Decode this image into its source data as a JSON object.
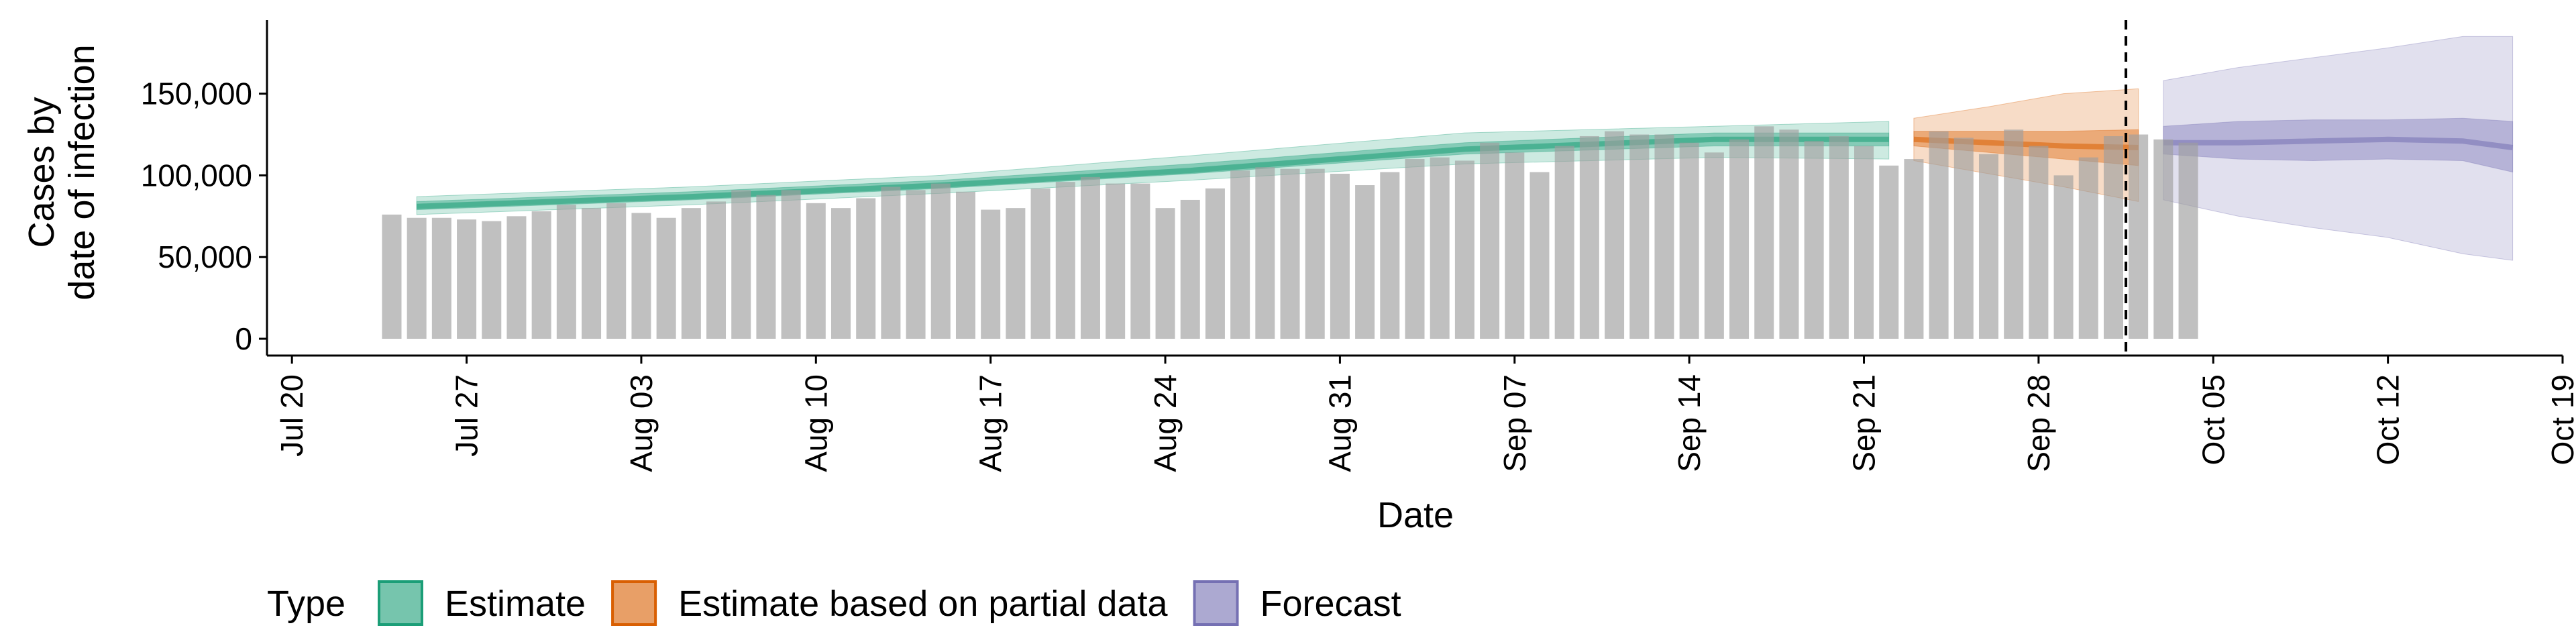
{
  "chart_data": {
    "type": "bar",
    "xlabel": "Date",
    "ylabel_lines": [
      "Cases by",
      "date of infection"
    ],
    "x_range": [
      "2020-07-19",
      "2020-10-19"
    ],
    "ylim": [
      0,
      195000
    ],
    "y_ticks": [
      0,
      50000,
      100000,
      150000
    ],
    "y_tick_labels": [
      "0",
      "50,000",
      "100,000",
      "150,000"
    ],
    "x_ticks": [
      "2020-07-20",
      "2020-07-27",
      "2020-08-03",
      "2020-08-10",
      "2020-08-17",
      "2020-08-24",
      "2020-08-31",
      "2020-09-07",
      "2020-09-14",
      "2020-09-21",
      "2020-09-28",
      "2020-10-05",
      "2020-10-12",
      "2020-10-19"
    ],
    "x_tick_labels": [
      "Jul 20",
      "Jul 27",
      "Aug 03",
      "Aug 10",
      "Aug 17",
      "Aug 24",
      "Aug 31",
      "Sep 07",
      "Sep 14",
      "Sep 21",
      "Sep 28",
      "Oct 05",
      "Oct 12",
      "Oct 19"
    ],
    "forecast_cutoff_date": "2020-10-02",
    "observed_cases": {
      "start_date": "2020-07-24",
      "values": [
        76000,
        74000,
        74000,
        73000,
        72000,
        75000,
        78000,
        82000,
        80000,
        83000,
        77000,
        74000,
        80000,
        84000,
        91000,
        88000,
        91000,
        83000,
        80000,
        86000,
        93000,
        91000,
        95000,
        90000,
        79000,
        80000,
        92000,
        96000,
        99000,
        95000,
        95000,
        80000,
        85000,
        92000,
        103000,
        105000,
        104000,
        104000,
        101000,
        94000,
        102000,
        110000,
        111000,
        109000,
        120000,
        114000,
        102000,
        118000,
        124000,
        127000,
        125000,
        125000,
        120000,
        114000,
        122000,
        130000,
        128000,
        121000,
        124000,
        118000,
        106000,
        110000,
        127000,
        123000,
        113000,
        128000,
        118000,
        100000,
        111000,
        124000,
        125000,
        122000,
        120000
      ]
    },
    "legend_title": "Type",
    "legend_position": "bottom",
    "grid": false,
    "series": [
      {
        "name": "Estimate",
        "color": "#1b9e77",
        "x": [
          "2020-07-25",
          "2020-08-05",
          "2020-08-15",
          "2020-08-25",
          "2020-09-05",
          "2020-09-15",
          "2020-09-22"
        ],
        "median": [
          81000,
          87000,
          94000,
          103000,
          116000,
          122000,
          122000
        ],
        "inner": [
          [
            79000,
            84000
          ],
          [
            85000,
            90000
          ],
          [
            92000,
            97000
          ],
          [
            101000,
            107000
          ],
          [
            113000,
            120000
          ],
          [
            118000,
            126000
          ],
          [
            118000,
            126000
          ]
        ],
        "outer": [
          [
            76000,
            87000
          ],
          [
            82000,
            93000
          ],
          [
            89000,
            100000
          ],
          [
            97000,
            112000
          ],
          [
            107000,
            126000
          ],
          [
            111000,
            130000
          ],
          [
            110000,
            133000
          ]
        ]
      },
      {
        "name": "Estimate based on partial data",
        "color": "#d95f02",
        "x": [
          "2020-09-23",
          "2020-09-26",
          "2020-09-29",
          "2020-10-02"
        ],
        "median": [
          122000,
          120000,
          118000,
          117000
        ],
        "inner": [
          [
            118000,
            127000
          ],
          [
            114000,
            127000
          ],
          [
            110000,
            127000
          ],
          [
            106000,
            128000
          ]
        ],
        "outer": [
          [
            109000,
            135000
          ],
          [
            101000,
            142000
          ],
          [
            93000,
            150000
          ],
          [
            84000,
            153000
          ]
        ]
      },
      {
        "name": "Forecast",
        "color": "#7570b3",
        "x": [
          "2020-10-03",
          "2020-10-06",
          "2020-10-09",
          "2020-10-12",
          "2020-10-15",
          "2020-10-17"
        ],
        "median": [
          120000,
          120000,
          121000,
          122000,
          121000,
          117000
        ],
        "inner": [
          [
            113000,
            130000
          ],
          [
            110000,
            133000
          ],
          [
            109000,
            134000
          ],
          [
            110000,
            134000
          ],
          [
            109000,
            135000
          ],
          [
            102000,
            133000
          ]
        ],
        "outer": [
          [
            85000,
            158000
          ],
          [
            75000,
            166000
          ],
          [
            68000,
            172000
          ],
          [
            62000,
            178000
          ],
          [
            52000,
            185000
          ],
          [
            48000,
            185000
          ]
        ]
      }
    ]
  }
}
